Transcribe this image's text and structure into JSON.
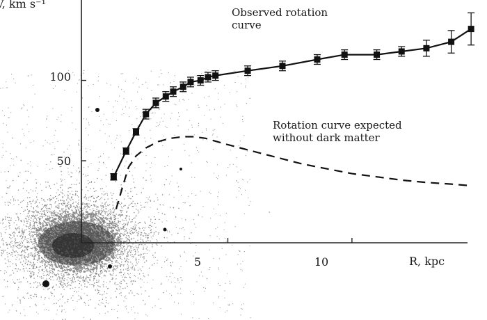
{
  "chart_data": {
    "type": "line",
    "title": "",
    "xlabel": "R, kpc",
    "ylabel": "V, km s⁻¹",
    "xlim": [
      -0.9,
      14.6
    ],
    "ylim": [
      -1,
      150
    ],
    "x_ticks": [
      5,
      10
    ],
    "y_ticks": [
      50,
      100
    ],
    "grid": false,
    "background_image": "galaxy-starfield",
    "series": [
      {
        "name": "",
        "style": "line-with-square-markers-and-errorbars",
        "x": [
          0.4,
          0.9,
          1.3,
          1.7,
          2.1,
          2.5,
          2.8,
          3.2,
          3.5,
          3.9,
          4.2,
          4.5,
          5.8,
          7.2,
          8.6,
          9.7,
          11.0,
          12.0,
          13.0,
          14.0,
          14.8
        ],
        "y": [
          40,
          56,
          68,
          79,
          86,
          90,
          93,
          96,
          99,
          100,
          102,
          103,
          106,
          109,
          113,
          116,
          116,
          118,
          120,
          124,
          132
        ],
        "err": [
          2,
          2,
          2,
          3,
          3,
          3,
          3,
          3,
          3,
          3,
          3,
          3,
          3,
          3,
          3,
          3,
          3,
          3,
          5,
          7,
          10
        ]
      },
      {
        "name": "",
        "style": "dashed",
        "x": [
          0.5,
          0.8,
          1.0,
          1.3,
          1.7,
          2.2,
          2.7,
          3.2,
          3.6,
          4.1,
          5.0,
          6.0,
          7.0,
          8.0,
          9.0,
          10.0,
          11.0,
          12.0,
          13.0,
          14.0,
          14.8
        ],
        "y": [
          20,
          36,
          46,
          53,
          58,
          62,
          64,
          65,
          65,
          64,
          60,
          56,
          52,
          48,
          45,
          42,
          40,
          38,
          36.5,
          35.5,
          34.5
        ]
      }
    ],
    "annotations": [
      {
        "text_lines": [
          "Observed rotation",
          "curve"
        ]
      },
      {
        "text_lines": [
          "Rotation curve expected",
          "without dark matter"
        ]
      }
    ]
  }
}
